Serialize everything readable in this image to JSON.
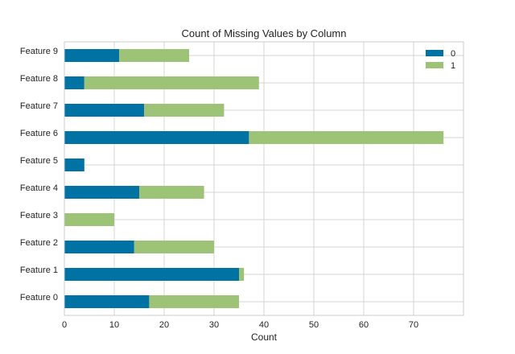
{
  "chart_data": {
    "type": "bar",
    "orientation": "horizontal",
    "stacked": true,
    "title": "Count of Missing Values by Column",
    "xlabel": "Count",
    "ylabel": "",
    "categories": [
      "Feature 0",
      "Feature 1",
      "Feature 2",
      "Feature 3",
      "Feature 4",
      "Feature 5",
      "Feature 6",
      "Feature 7",
      "Feature 8",
      "Feature 9"
    ],
    "series": [
      {
        "name": "0",
        "color": "#0072a3",
        "values": [
          17,
          35,
          14,
          0,
          15,
          4,
          37,
          16,
          4,
          11
        ]
      },
      {
        "name": "1",
        "color": "#9dc377",
        "values": [
          18,
          1,
          16,
          10,
          13,
          0,
          39,
          16,
          35,
          14
        ]
      }
    ],
    "xlim": [
      0,
      80
    ],
    "xticks": [
      0,
      10,
      20,
      30,
      40,
      50,
      60,
      70
    ],
    "grid": true,
    "legend_position": "top-right"
  }
}
